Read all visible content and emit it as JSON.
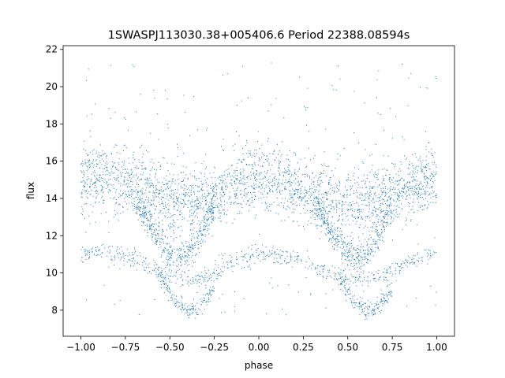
{
  "chart_data": {
    "type": "scatter",
    "title": "1SWASPJ113030.38+005406.6 Period 22388.08594s",
    "xlabel": "phase",
    "ylabel": "flux",
    "xlim": [
      -1.1,
      1.1
    ],
    "ylim": [
      6.6,
      22.2
    ],
    "xticks": [
      -1.0,
      -0.75,
      -0.5,
      -0.25,
      0.0,
      0.25,
      0.5,
      0.75,
      1.0
    ],
    "xtick_labels": [
      "−1.00",
      "−0.75",
      "−0.50",
      "−0.25",
      "0.00",
      "0.25",
      "0.50",
      "0.75",
      "1.00"
    ],
    "yticks": [
      8,
      10,
      12,
      14,
      16,
      18,
      20,
      22
    ],
    "ytick_labels": [
      "8",
      "10",
      "12",
      "14",
      "16",
      "18",
      "20",
      "22"
    ],
    "grid": false,
    "marker_color": "#1f77b4",
    "series": [
      {
        "role": "main band",
        "x": [
          -1.0,
          -0.9,
          -0.8,
          -0.7,
          -0.6,
          -0.5,
          -0.4,
          -0.3,
          -0.2,
          -0.1,
          0.0,
          0.1,
          0.2,
          0.3,
          0.4,
          0.5,
          0.6,
          0.7,
          0.8,
          0.9,
          1.0
        ],
        "y": [
          15.0,
          15.2,
          15.0,
          14.6,
          14.2,
          13.9,
          13.8,
          14.0,
          14.4,
          14.8,
          15.1,
          15.0,
          14.6,
          14.2,
          13.9,
          13.8,
          13.9,
          14.1,
          14.5,
          14.9,
          15.0
        ],
        "spread": 0.9
      },
      {
        "role": "primary dip",
        "x": [
          -0.7,
          -0.65,
          -0.6,
          -0.55,
          -0.5,
          -0.45,
          -0.4,
          -0.35,
          -0.3,
          -0.25,
          0.3,
          0.35,
          0.4,
          0.45,
          0.5,
          0.55,
          0.6,
          0.65,
          0.7,
          0.75
        ],
        "y": [
          13.8,
          13.2,
          12.4,
          11.6,
          11.0,
          10.8,
          11.0,
          11.6,
          12.6,
          13.6,
          13.8,
          13.2,
          12.4,
          11.6,
          11.0,
          10.8,
          11.0,
          11.6,
          12.6,
          13.6
        ],
        "spread": 0.4
      },
      {
        "role": "lower band",
        "x": [
          -1.0,
          -0.9,
          -0.8,
          -0.7,
          -0.6,
          -0.5,
          -0.4,
          -0.3,
          -0.2,
          -0.1,
          0.0,
          0.1,
          0.2,
          0.3,
          0.4,
          0.5,
          0.6,
          0.7,
          0.8,
          0.9,
          1.0
        ],
        "y": [
          11.0,
          11.1,
          11.0,
          10.7,
          10.2,
          9.8,
          9.6,
          9.8,
          10.3,
          10.8,
          11.0,
          11.0,
          10.8,
          10.4,
          10.0,
          9.7,
          9.7,
          9.9,
          10.3,
          10.8,
          11.0
        ],
        "spread": 0.25
      },
      {
        "role": "lower dip",
        "x": [
          -0.55,
          -0.5,
          -0.45,
          -0.4,
          -0.35,
          -0.3,
          -0.25,
          0.45,
          0.5,
          0.55,
          0.6,
          0.65,
          0.7,
          0.75
        ],
        "y": [
          9.8,
          9.0,
          8.3,
          8.0,
          8.0,
          8.5,
          9.3,
          9.8,
          9.0,
          8.3,
          8.0,
          8.0,
          8.5,
          9.3
        ],
        "spread": 0.25
      }
    ]
  }
}
